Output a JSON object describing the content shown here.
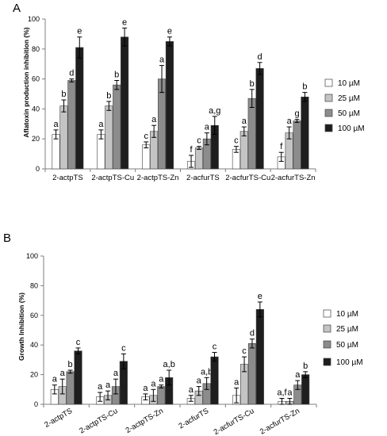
{
  "colors": {
    "10 µM": "#ffffff",
    "25 µM": "#c4c4c4",
    "50 µM": "#8c8c8c",
    "100 µM": "#1e1e1e",
    "axis": "#7f7f7f",
    "errorbar": "#000000"
  },
  "chart_data": [
    {
      "panel": "A",
      "type": "bar",
      "ylabel": "Aflatoxin production inhibition (%)",
      "xlabel": "",
      "ylim": [
        0,
        100
      ],
      "yticks": [
        0,
        20,
        40,
        60,
        80,
        100
      ],
      "grid": false,
      "legend": "right",
      "categories": [
        "2-actpTS",
        "2-actpTS-Cu",
        "2-actpTS-Zn",
        "2-acfurTS",
        "2-acfurTS-Cu",
        "2-acfurTS-Zn"
      ],
      "series": [
        {
          "name": "10 µM",
          "values": [
            23,
            23,
            16,
            5,
            13,
            8
          ],
          "errors": [
            3,
            3,
            2,
            4,
            2,
            3
          ],
          "labels": [
            "a",
            "a",
            "c",
            "f",
            "c",
            "f"
          ]
        },
        {
          "name": "25 µM",
          "values": [
            42,
            42,
            25,
            14,
            25,
            24
          ],
          "errors": [
            4,
            3,
            4,
            1,
            3,
            4
          ],
          "labels": [
            "b",
            "b",
            "a",
            "c",
            "a",
            "a"
          ]
        },
        {
          "name": "50 µM",
          "values": [
            59,
            56,
            60,
            20,
            47,
            32
          ],
          "errors": [
            1,
            3,
            9,
            4,
            6,
            1
          ],
          "labels": [
            "d",
            "b",
            "a",
            "a",
            "b",
            "g"
          ]
        },
        {
          "name": "100 µM",
          "values": [
            81,
            88,
            85,
            29,
            67,
            48
          ],
          "errors": [
            7,
            6,
            3,
            6,
            4,
            3
          ],
          "labels": [
            "e",
            "e",
            "e",
            "a,g",
            "d",
            "b"
          ]
        }
      ]
    },
    {
      "panel": "B",
      "type": "bar",
      "ylabel": "Growth Inhibition (%)",
      "xlabel": "",
      "ylim": [
        0,
        100
      ],
      "yticks": [
        0,
        20,
        40,
        60,
        80,
        100
      ],
      "grid": false,
      "legend": "right",
      "categories": [
        "2-actpTS",
        "2-actpTS-Cu",
        "2-actpTS-Zn",
        "2-acfurTS",
        "2-acfurTS-Cu",
        "2-acfurTS-Zn"
      ],
      "series": [
        {
          "name": "10 µM",
          "values": [
            10,
            5,
            5,
            4,
            6,
            2
          ],
          "errors": [
            3,
            3,
            2,
            2,
            5,
            2
          ],
          "labels": [
            "a",
            "a",
            "a",
            "a",
            "a",
            "a,f"
          ]
        },
        {
          "name": "25 µM",
          "values": [
            12,
            6,
            6,
            9,
            27,
            2
          ],
          "errors": [
            5,
            3,
            4,
            3,
            5,
            2
          ],
          "labels": [
            "a",
            "a",
            "a",
            "a",
            "c",
            "a"
          ]
        },
        {
          "name": "50 µM",
          "values": [
            22,
            12,
            12,
            14,
            41,
            13
          ],
          "errors": [
            1,
            5,
            1,
            4,
            3,
            3
          ],
          "labels": [
            "b",
            "a",
            "a",
            "a,b",
            "d",
            "a"
          ]
        },
        {
          "name": "100 µM",
          "values": [
            36,
            29,
            18,
            32,
            64,
            20
          ],
          "errors": [
            2,
            5,
            5,
            3,
            5,
            2
          ],
          "labels": [
            "c",
            "c",
            "a,b",
            "c",
            "e",
            "b"
          ]
        }
      ]
    }
  ]
}
